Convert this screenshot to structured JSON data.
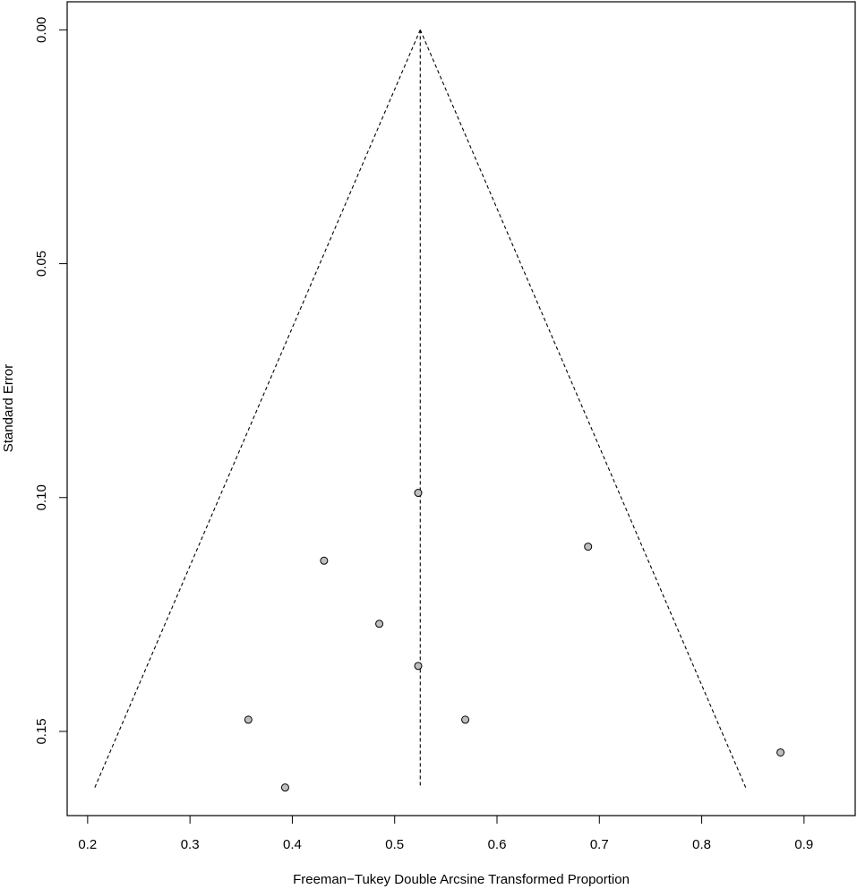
{
  "chart_data": {
    "type": "scatter",
    "title": "",
    "xlabel": "Freeman−Tukey Double Arcsine Transformed Proportion",
    "ylabel": "Standard Error",
    "xlim": [
      0.18,
      0.95
    ],
    "ylim": [
      0.168,
      -0.006
    ],
    "y_reversed": true,
    "xticks": [
      0.2,
      0.3,
      0.4,
      0.5,
      0.6,
      0.7,
      0.8,
      0.9
    ],
    "xtick_labels": [
      "0.2",
      "0.3",
      "0.4",
      "0.5",
      "0.6",
      "0.7",
      "0.8",
      "0.9"
    ],
    "yticks": [
      0.0,
      0.05,
      0.1,
      0.15
    ],
    "ytick_labels": [
      "0.00",
      "0.05",
      "0.10",
      "0.15"
    ],
    "grid": false,
    "legend": "none",
    "pooled_estimate": 0.525,
    "funnel": {
      "apex": [
        0.525,
        0.0
      ],
      "left_base": [
        0.207,
        0.162
      ],
      "right_base": [
        0.843,
        0.162
      ],
      "center_line_bottom": [
        0.525,
        0.162
      ]
    },
    "points": [
      {
        "x": 0.523,
        "y": 0.099
      },
      {
        "x": 0.689,
        "y": 0.1105
      },
      {
        "x": 0.431,
        "y": 0.1135
      },
      {
        "x": 0.485,
        "y": 0.127
      },
      {
        "x": 0.523,
        "y": 0.136
      },
      {
        "x": 0.357,
        "y": 0.1475
      },
      {
        "x": 0.569,
        "y": 0.1475
      },
      {
        "x": 0.877,
        "y": 0.1545
      },
      {
        "x": 0.393,
        "y": 0.162
      }
    ],
    "point_fill": "#bfbfbf",
    "point_stroke": "#000000"
  }
}
